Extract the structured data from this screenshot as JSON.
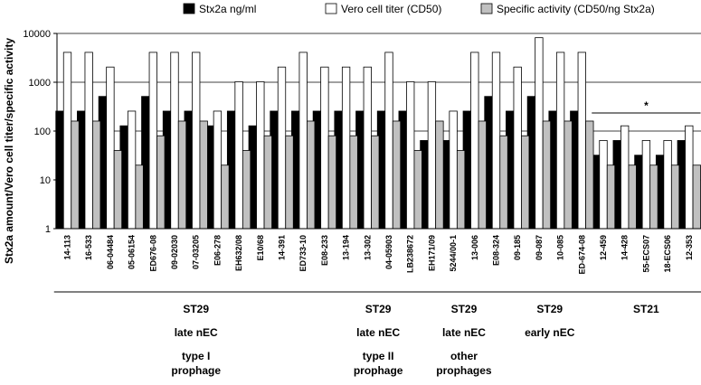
{
  "chart_data": {
    "type": "bar",
    "ylabel": "Stx2a amount/Vero cell titer/specific activity",
    "yscale": "log",
    "ylim": [
      1,
      10000
    ],
    "yticks": [
      "1",
      "10",
      "100",
      "1000",
      "10000"
    ],
    "grid": true,
    "legend_position": "top",
    "categories": [
      "14-113",
      "16-533",
      "06-04484",
      "05-06154",
      "ED676-08",
      "09-02030",
      "07-03205",
      "E06-278",
      "EH632/08",
      "E10/68",
      "14-391",
      "ED733-10",
      "E08-233",
      "13-194",
      "13-302",
      "04-05903",
      "LB238672",
      "EH171/09",
      "5244/00-1",
      "13-006",
      "E08-324",
      "09-185",
      "09-087",
      "10-085",
      "ED-674-08",
      "12-459",
      "14-428",
      "55-ECS07",
      "18-ECS06",
      "12-353"
    ],
    "series": [
      {
        "name": "Stx2a ng/ml",
        "color": "#000000",
        "values": [
          256,
          256,
          512,
          128,
          512,
          256,
          256,
          128,
          256,
          128,
          256,
          256,
          256,
          256,
          256,
          256,
          256,
          64,
          64,
          256,
          512,
          256,
          512,
          256,
          256,
          32,
          64,
          32,
          32,
          64
        ]
      },
      {
        "name": "Vero cell titer (CD50)",
        "color": "#ffffff",
        "values": [
          4096,
          4096,
          2048,
          256,
          4096,
          4096,
          4096,
          256,
          1024,
          1024,
          2048,
          4096,
          2048,
          2048,
          2048,
          4096,
          1024,
          1024,
          256,
          4096,
          4096,
          2048,
          8192,
          4096,
          4096,
          64,
          128,
          64,
          64,
          128
        ]
      },
      {
        "name": "Specific activity (CD50/ng Stx2a)",
        "color": "#c0c0c0",
        "values": [
          160,
          160,
          40,
          20,
          80,
          160,
          160,
          20,
          40,
          80,
          80,
          160,
          80,
          80,
          80,
          160,
          40,
          160,
          40,
          160,
          80,
          80,
          160,
          160,
          160,
          20,
          20,
          20,
          20,
          20
        ]
      }
    ],
    "groups": [
      {
        "strain": "ST29",
        "type": "late nEC",
        "prophage": "type I",
        "prophage2": "prophage",
        "start": 0,
        "end": 12
      },
      {
        "strain": "ST29",
        "type": "late nEC",
        "prophage": "type II",
        "prophage2": "prophage",
        "start": 13,
        "end": 16
      },
      {
        "strain": "ST29",
        "type": "late nEC",
        "prophage": "other",
        "prophage2": "prophages",
        "start": 17,
        "end": 20
      },
      {
        "strain": "ST29",
        "type": "early nEC",
        "prophage": "",
        "prophage2": "",
        "start": 21,
        "end": 24
      },
      {
        "strain": "ST21",
        "type": "",
        "prophage": "",
        "prophage2": "",
        "start": 25,
        "end": 29
      }
    ],
    "annotation": {
      "text": "*",
      "start": 25,
      "end": 29
    }
  }
}
